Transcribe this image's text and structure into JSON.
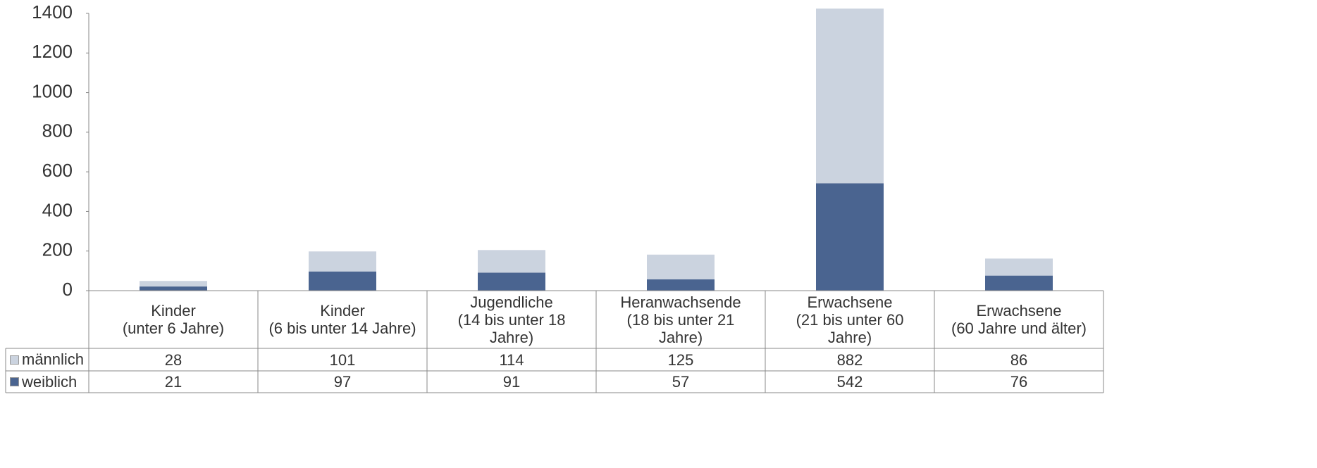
{
  "chart_data": {
    "type": "bar",
    "stacked": true,
    "categories": [
      "Kinder\n(unter 6 Jahre)",
      "Kinder\n(6 bis unter 14 Jahre)",
      "Jugendliche\n(14 bis unter 18\nJahre)",
      "Heranwachsende\n(18 bis unter 21\nJahre)",
      "Erwachsene\n(21 bis unter 60\nJahre)",
      "Erwachsene\n(60 Jahre und älter)"
    ],
    "series": [
      {
        "name": "männlich",
        "color": "#cbd3df",
        "values": [
          28,
          101,
          114,
          125,
          882,
          86
        ]
      },
      {
        "name": "weiblich",
        "color": "#4a6490",
        "values": [
          21,
          97,
          91,
          57,
          542,
          76
        ]
      }
    ],
    "ylim": [
      0,
      1400
    ],
    "yticks": [
      0,
      200,
      400,
      600,
      800,
      1000,
      1200,
      1400
    ],
    "grid": false,
    "legend": "table"
  }
}
